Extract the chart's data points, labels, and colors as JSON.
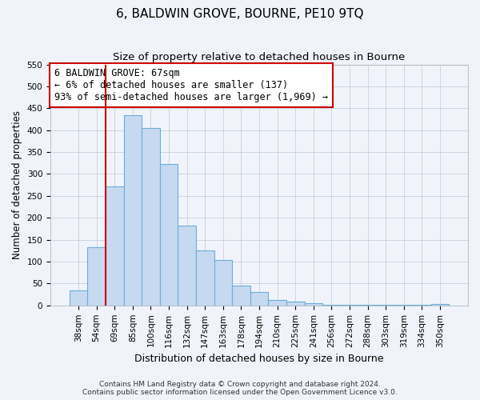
{
  "title": "6, BALDWIN GROVE, BOURNE, PE10 9TQ",
  "subtitle": "Size of property relative to detached houses in Bourne",
  "xlabel": "Distribution of detached houses by size in Bourne",
  "ylabel": "Number of detached properties",
  "bar_labels": [
    "38sqm",
    "54sqm",
    "69sqm",
    "85sqm",
    "100sqm",
    "116sqm",
    "132sqm",
    "147sqm",
    "163sqm",
    "178sqm",
    "194sqm",
    "210sqm",
    "225sqm",
    "241sqm",
    "256sqm",
    "272sqm",
    "288sqm",
    "303sqm",
    "319sqm",
    "334sqm",
    "350sqm"
  ],
  "bar_values": [
    35,
    133,
    272,
    435,
    405,
    323,
    183,
    126,
    104,
    46,
    30,
    13,
    8,
    5,
    2,
    1,
    1,
    1,
    1,
    1,
    3
  ],
  "bar_color": "#c6d9f0",
  "bar_edge_color": "#6baed6",
  "vline_x_index": 2,
  "vline_color": "#cc0000",
  "annotation_line1": "6 BALDWIN GROVE: 67sqm",
  "annotation_line2": "← 6% of detached houses are smaller (137)",
  "annotation_line3": "93% of semi-detached houses are larger (1,969) →",
  "annotation_box_facecolor": "#ffffff",
  "annotation_box_edgecolor": "#cc0000",
  "ylim": [
    0,
    550
  ],
  "yticks": [
    0,
    50,
    100,
    150,
    200,
    250,
    300,
    350,
    400,
    450,
    500,
    550
  ],
  "footnote_line1": "Contains HM Land Registry data © Crown copyright and database right 2024.",
  "footnote_line2": "Contains public sector information licensed under the Open Government Licence v3.0.",
  "title_fontsize": 11,
  "subtitle_fontsize": 9.5,
  "xlabel_fontsize": 9,
  "ylabel_fontsize": 8.5,
  "tick_fontsize": 7.5,
  "annotation_fontsize": 8.5,
  "footnote_fontsize": 6.5,
  "background_color": "#f0f4fa"
}
